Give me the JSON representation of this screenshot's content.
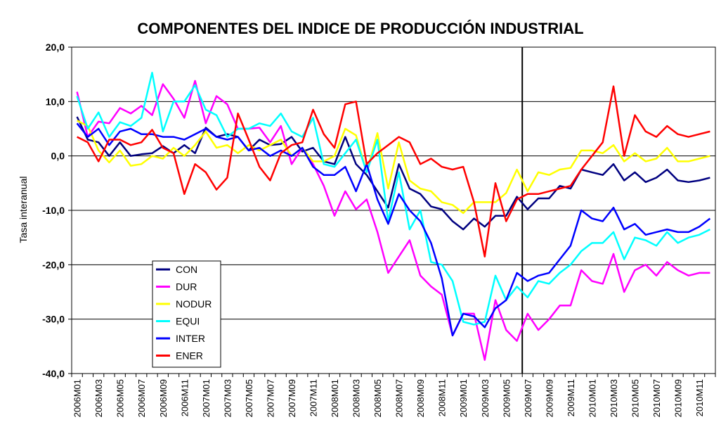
{
  "chart_data": {
    "type": "line",
    "title": "COMPONENTES DEL INDICE DE PRODUCCIÓN INDUSTRIAL",
    "xlabel": "",
    "ylabel": "Tasa interanual",
    "ylim": [
      -40,
      20
    ],
    "yticks": [
      "20,0",
      "10,0",
      "0,0",
      "-10,0",
      "-20,0",
      "-30,0",
      "-40,0"
    ],
    "grid": "horizontal",
    "legend_position": "bottom-left",
    "vertical_marker": "2009M06",
    "x": [
      "2006M01",
      "2006M02",
      "2006M03",
      "2006M04",
      "2006M05",
      "2006M06",
      "2006M07",
      "2006M08",
      "2006M09",
      "2006M10",
      "2006M11",
      "2006M12",
      "2007M01",
      "2007M02",
      "2007M03",
      "2007M04",
      "2007M05",
      "2007M06",
      "2007M07",
      "2007M08",
      "2007M09",
      "2007M10",
      "2007M11",
      "2007M12",
      "2008M01",
      "2008M02",
      "2008M03",
      "2008M04",
      "2008M05",
      "2008M06",
      "2008M07",
      "2008M08",
      "2008M09",
      "2008M10",
      "2008M11",
      "2008M12",
      "2009M01",
      "2009M02",
      "2009M03",
      "2009M04",
      "2009M05",
      "2009M06",
      "2009M07",
      "2009M08",
      "2009M09",
      "2009M10",
      "2009M11",
      "2009M12",
      "2010M01",
      "2010M02",
      "2010M03",
      "2010M04",
      "2010M05",
      "2010M06",
      "2010M07",
      "2010M08",
      "2010M09",
      "2010M10",
      "2010M11",
      "2010M12"
    ],
    "xticks": [
      "2006M01",
      "2006M03",
      "2006M05",
      "2006M07",
      "2006M09",
      "2006M11",
      "2007M01",
      "2007M03",
      "2007M05",
      "2007M07",
      "2007M09",
      "2007M11",
      "2008M01",
      "2008M03",
      "2008M05",
      "2008M07",
      "2008M09",
      "2008M11",
      "2009M01",
      "2009M03",
      "2009M05",
      "2009M07",
      "2009M09",
      "2009M11",
      "2010M01",
      "2010M03",
      "2010M05",
      "2010M07",
      "2010M09",
      "2010M11"
    ],
    "series": [
      {
        "name": "CON",
        "color": "#000080",
        "values": [
          7.2,
          3.0,
          2.5,
          0.0,
          2.5,
          0.0,
          0.3,
          0.5,
          1.8,
          0.5,
          2.0,
          0.5,
          5.2,
          3.5,
          4.0,
          3.5,
          1.0,
          3.0,
          2.0,
          2.2,
          3.5,
          0.8,
          1.5,
          -1.0,
          -1.5,
          3.5,
          -1.5,
          -3.5,
          -6.5,
          -9.5,
          -1.5,
          -6.0,
          -7.0,
          -9.3,
          -9.8,
          -12.0,
          -13.5,
          -11.5,
          -13.0,
          -11.0,
          -11.0,
          -7.5,
          -9.8,
          -7.8,
          -7.8,
          -5.5,
          -6.0,
          -2.5,
          -3.0,
          -3.5,
          -1.5,
          -4.5,
          -3.0,
          -4.8,
          -4.0,
          -2.5,
          -4.5,
          -4.8,
          -4.5,
          -4.0
        ]
      },
      {
        "name": "DUR",
        "color": "#ff00ff",
        "values": [
          11.8,
          3.5,
          6.3,
          6.0,
          8.8,
          7.8,
          9.2,
          7.5,
          13.2,
          10.5,
          7.0,
          13.8,
          6.0,
          11.0,
          9.5,
          5.0,
          5.0,
          5.2,
          2.5,
          5.5,
          -1.5,
          1.5,
          -1.5,
          -5.5,
          -11.0,
          -6.5,
          -9.8,
          -8.0,
          -14.0,
          -21.5,
          -18.5,
          -15.5,
          -22.0,
          -24.0,
          -25.5,
          -33.0,
          -29.0,
          -29.0,
          -37.5,
          -26.5,
          -32.0,
          -34.0,
          -29.0,
          -32.0,
          -30.0,
          -27.5,
          -27.5,
          -21.0,
          -23.0,
          -23.5,
          -18.0,
          -25.0,
          -21.0,
          -20.0,
          -22.0,
          -19.5,
          -21.0,
          -22.0,
          -21.5,
          -21.5
        ]
      },
      {
        "name": "NODUR",
        "color": "#ffff00",
        "values": [
          6.5,
          5.5,
          1.0,
          -1.2,
          1.0,
          -1.8,
          -1.5,
          0.0,
          -0.5,
          1.5,
          0.0,
          2.0,
          4.5,
          1.5,
          2.0,
          0.5,
          2.0,
          1.0,
          2.0,
          3.0,
          0.0,
          1.5,
          -1.0,
          -1.0,
          0.0,
          5.0,
          3.8,
          -3.0,
          4.2,
          -6.0,
          2.5,
          -4.5,
          -6.0,
          -6.5,
          -8.5,
          -9.0,
          -10.5,
          -8.5,
          -8.5,
          -8.5,
          -6.8,
          -2.5,
          -6.5,
          -3.0,
          -3.5,
          -2.5,
          -2.2,
          1.0,
          1.0,
          0.5,
          2.0,
          -1.0,
          0.5,
          -1.0,
          -0.5,
          1.5,
          -1.0,
          -1.0,
          -0.5,
          0.0
        ]
      },
      {
        "name": "EQUI",
        "color": "#00ffff",
        "values": [
          11.0,
          5.0,
          8.0,
          3.5,
          6.2,
          5.5,
          7.0,
          15.3,
          4.5,
          10.0,
          10.0,
          13.0,
          8.5,
          7.5,
          3.5,
          5.0,
          5.0,
          6.0,
          5.5,
          7.8,
          4.5,
          3.5,
          7.0,
          -1.5,
          -2.0,
          0.5,
          3.0,
          -3.0,
          3.0,
          -12.0,
          -3.0,
          -13.5,
          -10.0,
          -19.5,
          -20.0,
          -23.0,
          -30.5,
          -31.0,
          -30.5,
          -22.0,
          -26.5,
          -24.0,
          -26.0,
          -23.0,
          -23.5,
          -21.5,
          -20.0,
          -17.5,
          -16.0,
          -16.0,
          -14.0,
          -19.0,
          -15.0,
          -15.5,
          -16.5,
          -14.0,
          -16.0,
          -15.0,
          -14.5,
          -13.5
        ]
      },
      {
        "name": "INTER",
        "color": "#0000ff",
        "values": [
          6.0,
          3.5,
          5.0,
          2.0,
          4.5,
          5.0,
          4.0,
          4.0,
          3.5,
          3.5,
          3.0,
          4.0,
          5.0,
          3.5,
          3.0,
          3.5,
          1.0,
          1.5,
          0.0,
          1.0,
          0.0,
          1.5,
          -2.0,
          -3.5,
          -3.5,
          -2.0,
          -6.5,
          -1.5,
          -8.0,
          -12.5,
          -7.0,
          -10.0,
          -12.0,
          -16.0,
          -22.5,
          -33.0,
          -29.0,
          -29.5,
          -31.5,
          -28.0,
          -26.5,
          -21.5,
          -23.0,
          -22.0,
          -21.5,
          -19.0,
          -16.5,
          -10.0,
          -11.5,
          -12.0,
          -9.5,
          -13.5,
          -12.5,
          -14.5,
          -14.0,
          -13.5,
          -14.0,
          -14.0,
          -13.0,
          -11.5
        ]
      },
      {
        "name": "ENER",
        "color": "#ff0000",
        "values": [
          3.5,
          2.5,
          -1.0,
          3.0,
          3.0,
          2.0,
          2.5,
          4.8,
          1.5,
          0.5,
          -7.0,
          -1.5,
          -3.0,
          -6.2,
          -4.0,
          7.8,
          3.0,
          -2.0,
          -4.5,
          0.5,
          2.0,
          2.5,
          8.5,
          4.0,
          1.5,
          9.5,
          10.0,
          -1.5,
          0.5,
          2.0,
          3.5,
          2.5,
          -1.5,
          -0.5,
          -2.0,
          -2.5,
          -2.0,
          -8.5,
          -18.5,
          -5.0,
          -12.0,
          -8.0,
          -7.0,
          -7.0,
          -6.5,
          -6.0,
          -5.5,
          -2.5,
          0.0,
          2.5,
          12.8,
          0.0,
          7.5,
          4.5,
          3.5,
          5.5,
          4.0,
          3.5,
          4.0,
          4.5
        ]
      }
    ]
  }
}
